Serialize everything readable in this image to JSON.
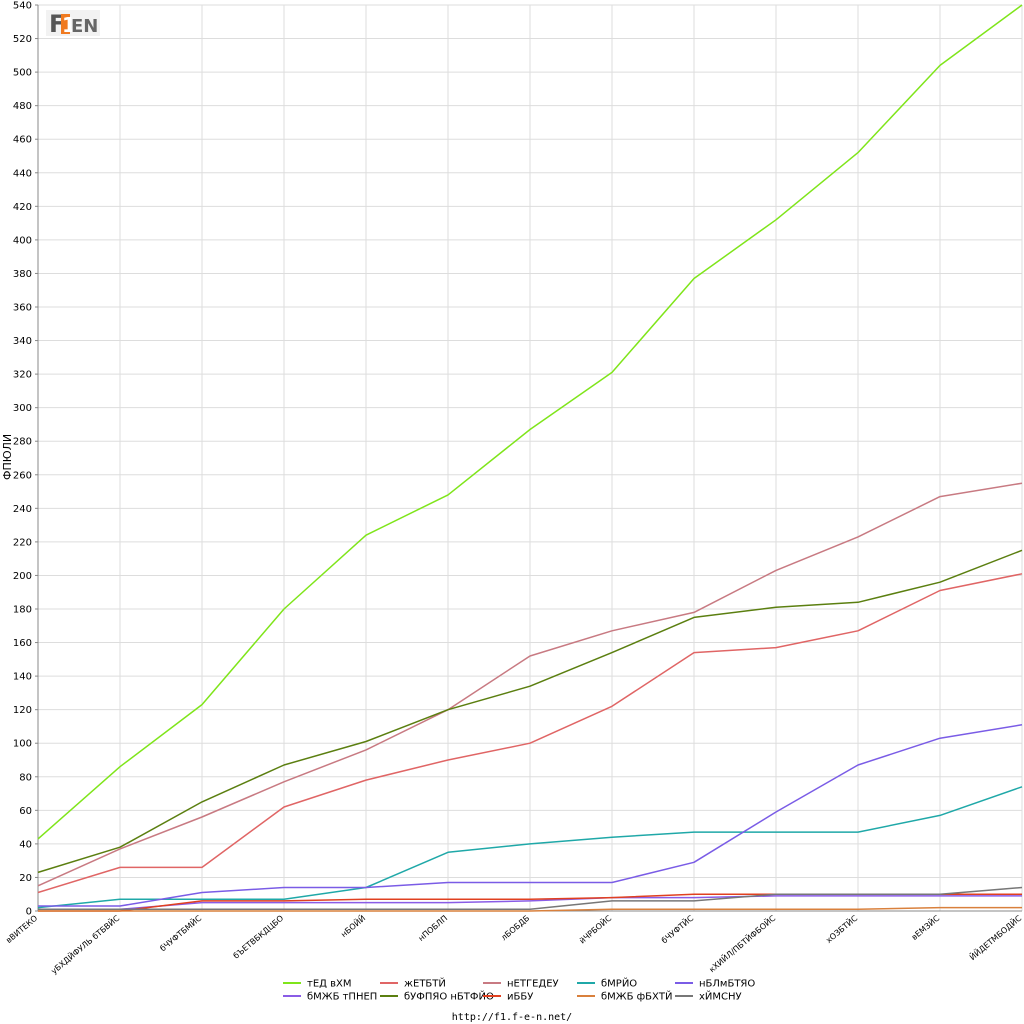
{
  "logo_text": "F1EN",
  "footer": "http://f1.f-e-n.net/",
  "chart_data": {
    "type": "line",
    "ylabel": "ФПЮЛИ",
    "xlabel": "",
    "ylim": [
      0,
      540
    ],
    "yticks": [
      0,
      20,
      40,
      60,
      80,
      100,
      120,
      140,
      160,
      180,
      200,
      220,
      240,
      260,
      280,
      300,
      320,
      340,
      360,
      380,
      400,
      420,
      440,
      460,
      480,
      500,
      520,
      540
    ],
    "grid": true,
    "legend_position": "bottom",
    "categories": [
      "вВИТЕКО",
      "уБХДЙФУЛЬ бТБВЙС",
      "бЧУФТБМЙС",
      "бЪЕТВБКДЦБО",
      "нБОЙЙ",
      "нПОБЛП",
      "лБОБДБ",
      "йЧРБОЙС",
      "бЧУФТЙС",
      "кХИЙЛ/ПБТЙФБОЙС",
      "хОЗБТЙС",
      "вЕМЗЙС",
      "ЙЙДЕТМБОДЙС"
    ],
    "series": [
      {
        "name": "тЕД вХМ",
        "color": "#7fe51a",
        "values": [
          43,
          86,
          123,
          180,
          224,
          248,
          287,
          321,
          377,
          412,
          452,
          504,
          540
        ]
      },
      {
        "name": "жЕТБТЙ",
        "color": "#e06565",
        "values": [
          11,
          26,
          26,
          62,
          78,
          90,
          100,
          122,
          154,
          157,
          167,
          191,
          201
        ]
      },
      {
        "name": "нЕТГЕДЕУ",
        "color": "#c87a82",
        "values": [
          15,
          37,
          56,
          77,
          96,
          120,
          152,
          167,
          178,
          203,
          223,
          247,
          255
        ]
      },
      {
        "name": "бМРЙО",
        "color": "#1fa8a8",
        "values": [
          2,
          7,
          7,
          7,
          14,
          35,
          40,
          44,
          47,
          47,
          47,
          57,
          74
        ]
      },
      {
        "name": "нБЛмБТЯО",
        "color": "#7a5ce6",
        "values": [
          3,
          3,
          11,
          14,
          14,
          17,
          17,
          17,
          29,
          59,
          87,
          103,
          111
        ]
      },
      {
        "name": "бМЖБ тПНЕП",
        "color": "#8a5ce6",
        "values": [
          1,
          1,
          5,
          5,
          5,
          5,
          6,
          8,
          8,
          9,
          9,
          9,
          9
        ]
      },
      {
        "name": "бУФПЯО нБТФЙО",
        "color": "#5b7f10",
        "values": [
          23,
          38,
          65,
          87,
          101,
          120,
          134,
          154,
          175,
          181,
          184,
          196,
          215
        ]
      },
      {
        "name": "иББУ",
        "color": "#e04020",
        "values": [
          0,
          0,
          6,
          6,
          7,
          7,
          7,
          8,
          10,
          10,
          10,
          10,
          10
        ]
      },
      {
        "name": "бМЖБ фБХТЙ",
        "color": "#d9803c",
        "values": [
          0,
          0,
          0,
          0,
          0,
          0,
          0,
          1,
          1,
          1,
          1,
          2,
          2
        ]
      },
      {
        "name": "хЙМСНУ",
        "color": "#777777",
        "values": [
          1,
          1,
          1,
          1,
          1,
          1,
          1,
          6,
          6,
          10,
          10,
          10,
          14
        ]
      }
    ]
  }
}
